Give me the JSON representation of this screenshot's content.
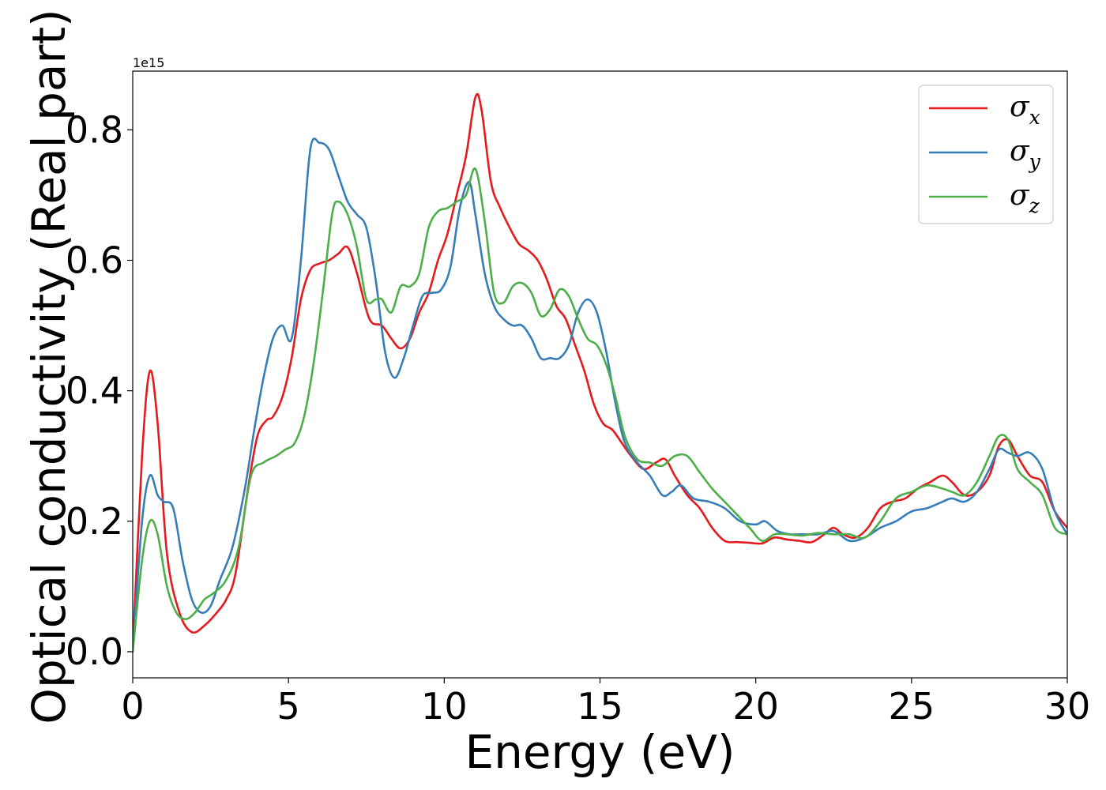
{
  "chart_data": {
    "type": "line",
    "title": "",
    "xlabel": "Energy (eV)",
    "ylabel": "Optical conductivity (Real part)",
    "y_offset_label": "1e15",
    "xlim": [
      0,
      30
    ],
    "ylim": [
      -0.04,
      0.89
    ],
    "x_ticks": [
      0,
      5,
      10,
      15,
      20,
      25,
      30
    ],
    "x_tick_labels": [
      "0",
      "5",
      "10",
      "15",
      "20",
      "25",
      "30"
    ],
    "y_ticks": [
      0.0,
      0.2,
      0.4,
      0.6,
      0.8
    ],
    "y_tick_labels": [
      "0.0",
      "0.2",
      "0.4",
      "0.6",
      "0.8"
    ],
    "grid": false,
    "legend_position": "top-right",
    "series": [
      {
        "name": "σx",
        "symbol": "σ",
        "subscript": "x",
        "color": "#e41a1c",
        "x": [
          0,
          0.3,
          0.55,
          0.8,
          1.1,
          1.5,
          1.9,
          2.3,
          2.7,
          3.0,
          3.3,
          3.7,
          4.0,
          4.3,
          4.5,
          4.8,
          5.1,
          5.4,
          5.7,
          6.0,
          6.3,
          6.6,
          6.9,
          7.2,
          7.6,
          8.0,
          8.3,
          8.6,
          8.9,
          9.2,
          9.5,
          9.8,
          10.1,
          10.4,
          10.7,
          11.0,
          11.2,
          11.5,
          11.8,
          12.1,
          12.4,
          12.7,
          13.0,
          13.3,
          13.6,
          13.9,
          14.2,
          14.5,
          14.8,
          15.1,
          15.4,
          15.7,
          16.0,
          16.4,
          16.8,
          17.1,
          17.4,
          17.8,
          18.2,
          18.6,
          19.0,
          19.4,
          19.8,
          20.2,
          20.6,
          21.0,
          21.4,
          21.8,
          22.2,
          22.5,
          22.8,
          23.2,
          23.6,
          24.0,
          24.4,
          24.8,
          25.2,
          25.6,
          26.0,
          26.3,
          26.7,
          27.1,
          27.5,
          27.8,
          28.1,
          28.4,
          28.8,
          29.2,
          29.6,
          30.0
        ],
        "values": [
          0.0,
          0.3,
          0.43,
          0.35,
          0.15,
          0.06,
          0.03,
          0.04,
          0.06,
          0.08,
          0.12,
          0.25,
          0.33,
          0.355,
          0.36,
          0.39,
          0.45,
          0.54,
          0.585,
          0.595,
          0.6,
          0.61,
          0.62,
          0.58,
          0.51,
          0.5,
          0.48,
          0.465,
          0.48,
          0.52,
          0.55,
          0.6,
          0.64,
          0.7,
          0.76,
          0.85,
          0.83,
          0.72,
          0.68,
          0.65,
          0.625,
          0.615,
          0.6,
          0.57,
          0.53,
          0.51,
          0.47,
          0.43,
          0.38,
          0.35,
          0.34,
          0.32,
          0.3,
          0.28,
          0.29,
          0.295,
          0.27,
          0.24,
          0.22,
          0.19,
          0.17,
          0.168,
          0.167,
          0.166,
          0.175,
          0.172,
          0.17,
          0.168,
          0.18,
          0.19,
          0.18,
          0.175,
          0.19,
          0.22,
          0.23,
          0.235,
          0.25,
          0.26,
          0.27,
          0.26,
          0.24,
          0.245,
          0.27,
          0.315,
          0.325,
          0.3,
          0.27,
          0.26,
          0.215,
          0.19
        ]
      },
      {
        "name": "σy",
        "symbol": "σ",
        "subscript": "y",
        "color": "#377eb8",
        "x": [
          0,
          0.3,
          0.55,
          0.8,
          1.0,
          1.3,
          1.6,
          1.9,
          2.2,
          2.5,
          2.8,
          3.2,
          3.6,
          3.9,
          4.2,
          4.5,
          4.8,
          5.1,
          5.4,
          5.7,
          6.0,
          6.3,
          6.6,
          6.9,
          7.2,
          7.5,
          7.8,
          8.1,
          8.4,
          8.7,
          9.0,
          9.3,
          9.6,
          9.9,
          10.2,
          10.5,
          10.8,
          11.0,
          11.3,
          11.6,
          11.9,
          12.2,
          12.5,
          12.8,
          13.1,
          13.4,
          13.7,
          14.0,
          14.3,
          14.6,
          14.9,
          15.2,
          15.5,
          15.8,
          16.2,
          16.6,
          17.0,
          17.3,
          17.6,
          18.0,
          18.5,
          19.0,
          19.5,
          20.0,
          20.3,
          20.7,
          21.1,
          21.5,
          22.0,
          22.5,
          23.0,
          23.5,
          24.0,
          24.5,
          25.0,
          25.5,
          26.0,
          26.3,
          26.7,
          27.1,
          27.5,
          27.8,
          28.1,
          28.4,
          28.8,
          29.2,
          29.6,
          30.0
        ],
        "values": [
          0.0,
          0.2,
          0.27,
          0.24,
          0.23,
          0.22,
          0.14,
          0.08,
          0.06,
          0.07,
          0.11,
          0.16,
          0.25,
          0.34,
          0.42,
          0.48,
          0.5,
          0.48,
          0.6,
          0.77,
          0.78,
          0.77,
          0.73,
          0.69,
          0.67,
          0.65,
          0.57,
          0.46,
          0.42,
          0.45,
          0.5,
          0.545,
          0.55,
          0.555,
          0.59,
          0.68,
          0.72,
          0.67,
          0.58,
          0.53,
          0.51,
          0.5,
          0.5,
          0.48,
          0.45,
          0.45,
          0.45,
          0.47,
          0.52,
          0.54,
          0.52,
          0.46,
          0.38,
          0.32,
          0.29,
          0.27,
          0.24,
          0.245,
          0.255,
          0.235,
          0.23,
          0.22,
          0.2,
          0.195,
          0.2,
          0.185,
          0.18,
          0.18,
          0.18,
          0.185,
          0.17,
          0.175,
          0.19,
          0.2,
          0.215,
          0.22,
          0.23,
          0.235,
          0.23,
          0.245,
          0.28,
          0.31,
          0.305,
          0.3,
          0.305,
          0.28,
          0.215,
          0.18
        ]
      },
      {
        "name": "σz",
        "symbol": "σ",
        "subscript": "z",
        "color": "#4daf4a",
        "x": [
          0,
          0.3,
          0.55,
          0.8,
          1.1,
          1.4,
          1.7,
          2.0,
          2.3,
          2.6,
          3.0,
          3.4,
          3.8,
          4.2,
          4.6,
          4.9,
          5.2,
          5.5,
          5.8,
          6.1,
          6.4,
          6.6,
          6.9,
          7.2,
          7.5,
          7.8,
          8.0,
          8.3,
          8.6,
          8.9,
          9.2,
          9.5,
          9.8,
          10.1,
          10.4,
          10.7,
          11.0,
          11.3,
          11.6,
          11.9,
          12.2,
          12.5,
          12.8,
          13.1,
          13.4,
          13.7,
          14.0,
          14.3,
          14.6,
          14.9,
          15.2,
          15.5,
          15.8,
          16.2,
          16.6,
          17.0,
          17.4,
          17.8,
          18.2,
          18.6,
          19.0,
          19.4,
          19.8,
          20.2,
          20.6,
          21.0,
          21.5,
          22.0,
          22.5,
          23.0,
          23.5,
          24.0,
          24.5,
          25.0,
          25.5,
          26.0,
          26.3,
          26.7,
          27.1,
          27.5,
          27.8,
          28.1,
          28.4,
          28.8,
          29.2,
          29.6,
          30.0
        ],
        "values": [
          0.0,
          0.14,
          0.2,
          0.18,
          0.1,
          0.06,
          0.05,
          0.06,
          0.08,
          0.09,
          0.11,
          0.16,
          0.27,
          0.29,
          0.3,
          0.31,
          0.32,
          0.36,
          0.44,
          0.55,
          0.67,
          0.69,
          0.67,
          0.62,
          0.54,
          0.54,
          0.54,
          0.52,
          0.56,
          0.56,
          0.58,
          0.65,
          0.675,
          0.68,
          0.69,
          0.7,
          0.74,
          0.66,
          0.55,
          0.535,
          0.56,
          0.565,
          0.55,
          0.515,
          0.525,
          0.555,
          0.545,
          0.51,
          0.48,
          0.47,
          0.44,
          0.39,
          0.33,
          0.295,
          0.29,
          0.285,
          0.3,
          0.3,
          0.275,
          0.25,
          0.23,
          0.21,
          0.19,
          0.17,
          0.18,
          0.18,
          0.178,
          0.182,
          0.18,
          0.18,
          0.175,
          0.2,
          0.235,
          0.245,
          0.255,
          0.25,
          0.245,
          0.24,
          0.26,
          0.3,
          0.33,
          0.325,
          0.28,
          0.26,
          0.24,
          0.19,
          0.18
        ]
      }
    ]
  }
}
